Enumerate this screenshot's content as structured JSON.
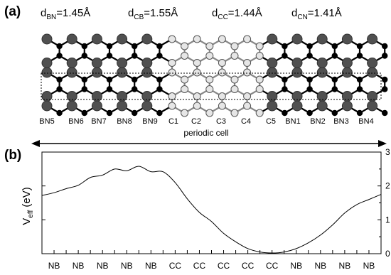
{
  "panel_a": {
    "label": "(a)",
    "distances": [
      {
        "main": "d",
        "sub": "BN",
        "value": "=1.45Å"
      },
      {
        "main": "d",
        "sub": "CB",
        "value": "=1.55Å"
      },
      {
        "main": "d",
        "sub": "CC",
        "value": "=1.44Å"
      },
      {
        "main": "d",
        "sub": "CN",
        "value": "=1.41Å"
      }
    ],
    "atom_labels": [
      "BN5",
      "BN6",
      "BN7",
      "BN8",
      "BN9",
      "C1",
      "C2",
      "C3",
      "C4",
      "C5",
      "BN1",
      "BN2",
      "BN3",
      "BN4"
    ],
    "period_label": "periodic cell"
  },
  "panel_b": {
    "label": "(b)",
    "ylabel_main": "V",
    "ylabel_sub": "eff",
    "ylabel_unit": " (eV)"
  },
  "chart_data": {
    "type": "line",
    "ylim": [
      0,
      3
    ],
    "yticks": [
      "0",
      "1",
      "2",
      "3"
    ],
    "xcategories": [
      "NB",
      "NB",
      "NB",
      "NB",
      "NB",
      "CC",
      "CC",
      "CC",
      "CC",
      "CC",
      "NB",
      "NB",
      "NB",
      "NB"
    ],
    "series": [
      {
        "x": [
          0,
          0.5,
          1,
          1.5,
          2,
          2.5,
          3,
          3.5,
          4,
          4.5,
          5,
          5.5,
          6,
          6.5,
          7,
          7.5,
          8,
          8.5,
          9,
          9.5,
          10,
          10.5,
          11,
          11.5,
          12,
          12.5,
          13,
          13.5,
          14
        ],
        "y": [
          1.72,
          1.8,
          1.92,
          2.02,
          2.25,
          2.32,
          2.5,
          2.45,
          2.58,
          2.42,
          2.42,
          2.1,
          1.62,
          1.22,
          0.95,
          0.6,
          0.35,
          0.15,
          0.05,
          0.02,
          0.05,
          0.15,
          0.32,
          0.55,
          0.85,
          1.2,
          1.45,
          1.6,
          1.75
        ]
      }
    ]
  }
}
